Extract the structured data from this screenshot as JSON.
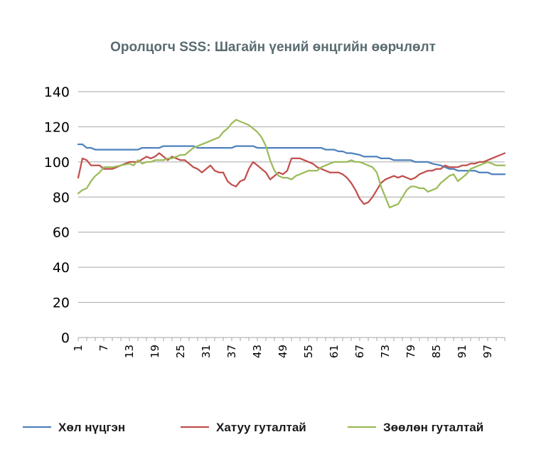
{
  "chart_data": {
    "type": "line",
    "title": "Оролцогч SSS: Шагайн үений өнцгийн өөрчлөлт",
    "xlabel": "",
    "ylabel": "",
    "ylim": [
      0,
      140
    ],
    "yticks": [
      0,
      20,
      40,
      60,
      80,
      100,
      120,
      140
    ],
    "x_start": 1,
    "x_end": 101,
    "xticks": [
      1,
      7,
      13,
      19,
      25,
      31,
      37,
      43,
      49,
      55,
      61,
      67,
      73,
      79,
      85,
      91,
      97
    ],
    "grid": true,
    "legend_position": "bottom",
    "series": [
      {
        "name": "Хөл нүцгэн",
        "color": "#4f81bd",
        "points": [
          [
            1,
            110
          ],
          [
            2,
            110
          ],
          [
            3,
            108
          ],
          [
            4,
            108
          ],
          [
            5,
            107
          ],
          [
            15,
            107
          ],
          [
            16,
            108
          ],
          [
            20,
            108
          ],
          [
            21,
            109
          ],
          [
            28,
            109
          ],
          [
            29,
            108
          ],
          [
            37,
            108
          ],
          [
            38,
            109
          ],
          [
            42,
            109
          ],
          [
            43,
            108
          ],
          [
            58,
            108
          ],
          [
            59,
            107
          ],
          [
            61,
            107
          ],
          [
            62,
            106
          ],
          [
            63,
            106
          ],
          [
            64,
            105
          ],
          [
            65,
            105
          ],
          [
            67,
            104
          ],
          [
            68,
            103
          ],
          [
            71,
            103
          ],
          [
            72,
            102
          ],
          [
            74,
            102
          ],
          [
            75,
            101
          ],
          [
            79,
            101
          ],
          [
            80,
            100
          ],
          [
            83,
            100
          ],
          [
            84,
            99
          ],
          [
            86,
            98
          ],
          [
            87,
            97
          ],
          [
            88,
            96
          ],
          [
            89,
            96
          ],
          [
            90,
            95
          ],
          [
            94,
            95
          ],
          [
            95,
            94
          ],
          [
            97,
            94
          ],
          [
            98,
            93
          ],
          [
            101,
            93
          ]
        ]
      },
      {
        "name": "Хатуу гуталтай",
        "color": "#c0504d",
        "points": [
          [
            1,
            91
          ],
          [
            2,
            102
          ],
          [
            3,
            101
          ],
          [
            4,
            98
          ],
          [
            6,
            98
          ],
          [
            7,
            96
          ],
          [
            9,
            96
          ],
          [
            11,
            98
          ],
          [
            13,
            100
          ],
          [
            15,
            100
          ],
          [
            17,
            103
          ],
          [
            18,
            102
          ],
          [
            19,
            103
          ],
          [
            20,
            105
          ],
          [
            21,
            103
          ],
          [
            22,
            101
          ],
          [
            23,
            103
          ],
          [
            24,
            102
          ],
          [
            25,
            101
          ],
          [
            26,
            101
          ],
          [
            27,
            99
          ],
          [
            28,
            97
          ],
          [
            29,
            96
          ],
          [
            30,
            94
          ],
          [
            31,
            96
          ],
          [
            32,
            98
          ],
          [
            33,
            95
          ],
          [
            34,
            94
          ],
          [
            35,
            94
          ],
          [
            36,
            89
          ],
          [
            37,
            87
          ],
          [
            38,
            86
          ],
          [
            39,
            89
          ],
          [
            40,
            90
          ],
          [
            41,
            96
          ],
          [
            42,
            100
          ],
          [
            43,
            98
          ],
          [
            44,
            96
          ],
          [
            45,
            94
          ],
          [
            46,
            90
          ],
          [
            47,
            92
          ],
          [
            48,
            94
          ],
          [
            49,
            93
          ],
          [
            50,
            95
          ],
          [
            51,
            102
          ],
          [
            52,
            102
          ],
          [
            53,
            102
          ],
          [
            54,
            101
          ],
          [
            55,
            100
          ],
          [
            56,
            99
          ],
          [
            57,
            97
          ],
          [
            58,
            96
          ],
          [
            59,
            95
          ],
          [
            60,
            94
          ],
          [
            61,
            94
          ],
          [
            62,
            94
          ],
          [
            63,
            93
          ],
          [
            64,
            91
          ],
          [
            65,
            88
          ],
          [
            66,
            84
          ],
          [
            67,
            79
          ],
          [
            68,
            76
          ],
          [
            69,
            77
          ],
          [
            70,
            80
          ],
          [
            71,
            84
          ],
          [
            72,
            88
          ],
          [
            73,
            90
          ],
          [
            74,
            91
          ],
          [
            75,
            92
          ],
          [
            76,
            91
          ],
          [
            77,
            92
          ],
          [
            78,
            91
          ],
          [
            79,
            90
          ],
          [
            80,
            91
          ],
          [
            81,
            93
          ],
          [
            82,
            94
          ],
          [
            83,
            95
          ],
          [
            84,
            95
          ],
          [
            85,
            96
          ],
          [
            86,
            96
          ],
          [
            87,
            98
          ],
          [
            88,
            97
          ],
          [
            89,
            97
          ],
          [
            90,
            97
          ],
          [
            91,
            98
          ],
          [
            92,
            98
          ],
          [
            93,
            99
          ],
          [
            94,
            99
          ],
          [
            95,
            100
          ],
          [
            96,
            100
          ],
          [
            97,
            101
          ],
          [
            98,
            102
          ],
          [
            99,
            103
          ],
          [
            100,
            104
          ],
          [
            101,
            105
          ]
        ]
      },
      {
        "name": "Зөөлөн гуталтай",
        "color": "#9bbb59",
        "points": [
          [
            1,
            82
          ],
          [
            2,
            84
          ],
          [
            3,
            85
          ],
          [
            4,
            89
          ],
          [
            5,
            92
          ],
          [
            6,
            94
          ],
          [
            7,
            97
          ],
          [
            9,
            97
          ],
          [
            11,
            98
          ],
          [
            13,
            99
          ],
          [
            14,
            98
          ],
          [
            15,
            101
          ],
          [
            16,
            99
          ],
          [
            17,
            100
          ],
          [
            18,
            100
          ],
          [
            19,
            101
          ],
          [
            20,
            101
          ],
          [
            21,
            101
          ],
          [
            22,
            102
          ],
          [
            23,
            102
          ],
          [
            24,
            103
          ],
          [
            25,
            104
          ],
          [
            26,
            104
          ],
          [
            27,
            106
          ],
          [
            28,
            108
          ],
          [
            29,
            109
          ],
          [
            30,
            110
          ],
          [
            31,
            111
          ],
          [
            32,
            112
          ],
          [
            33,
            113
          ],
          [
            34,
            114
          ],
          [
            35,
            117
          ],
          [
            36,
            119
          ],
          [
            37,
            122
          ],
          [
            38,
            124
          ],
          [
            39,
            123
          ],
          [
            40,
            122
          ],
          [
            41,
            121
          ],
          [
            42,
            119
          ],
          [
            43,
            117
          ],
          [
            44,
            114
          ],
          [
            45,
            109
          ],
          [
            46,
            101
          ],
          [
            47,
            95
          ],
          [
            48,
            92
          ],
          [
            49,
            91
          ],
          [
            50,
            91
          ],
          [
            51,
            90
          ],
          [
            52,
            92
          ],
          [
            53,
            93
          ],
          [
            54,
            94
          ],
          [
            55,
            95
          ],
          [
            56,
            95
          ],
          [
            57,
            95
          ],
          [
            58,
            97
          ],
          [
            59,
            98
          ],
          [
            60,
            99
          ],
          [
            61,
            100
          ],
          [
            62,
            100
          ],
          [
            63,
            100
          ],
          [
            64,
            100
          ],
          [
            65,
            101
          ],
          [
            66,
            100
          ],
          [
            67,
            100
          ],
          [
            68,
            99
          ],
          [
            69,
            98
          ],
          [
            70,
            97
          ],
          [
            71,
            94
          ],
          [
            72,
            86
          ],
          [
            73,
            80
          ],
          [
            74,
            74
          ],
          [
            75,
            75
          ],
          [
            76,
            76
          ],
          [
            77,
            80
          ],
          [
            78,
            84
          ],
          [
            79,
            86
          ],
          [
            80,
            86
          ],
          [
            81,
            85
          ],
          [
            82,
            85
          ],
          [
            83,
            83
          ],
          [
            84,
            84
          ],
          [
            85,
            85
          ],
          [
            86,
            88
          ],
          [
            87,
            90
          ],
          [
            88,
            92
          ],
          [
            89,
            93
          ],
          [
            90,
            89
          ],
          [
            91,
            91
          ],
          [
            92,
            93
          ],
          [
            93,
            96
          ],
          [
            94,
            97
          ],
          [
            95,
            98
          ],
          [
            96,
            99
          ],
          [
            97,
            100
          ],
          [
            98,
            99
          ],
          [
            99,
            98
          ],
          [
            100,
            98
          ],
          [
            101,
            98
          ]
        ]
      }
    ]
  }
}
